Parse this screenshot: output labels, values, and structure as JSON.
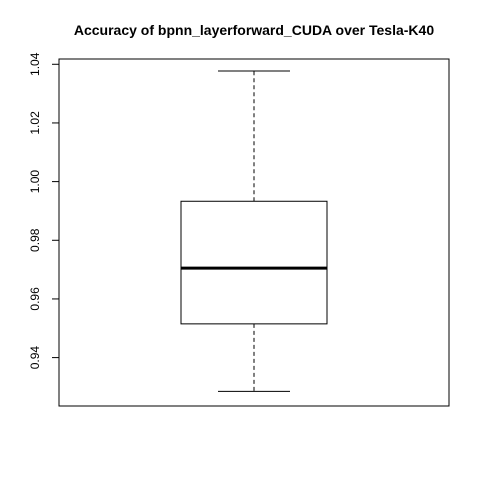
{
  "chart_data": {
    "type": "boxplot",
    "title": "Accuracy of bpnn_layerforward_CUDA over Tesla-K40",
    "xlabel": "",
    "ylabel": "",
    "ylim": [
      0.9235,
      1.0418
    ],
    "yticks": [
      0.94,
      0.96,
      0.98,
      1.0,
      1.02,
      1.04
    ],
    "ytick_labels": [
      "0.94",
      "0.96",
      "0.98",
      "1.00",
      "1.02",
      "1.04"
    ],
    "grid": false,
    "box": {
      "whisker_low": 0.9285,
      "q1": 0.9515,
      "median": 0.9705,
      "q3": 0.9933,
      "whisker_high": 1.0377
    }
  }
}
